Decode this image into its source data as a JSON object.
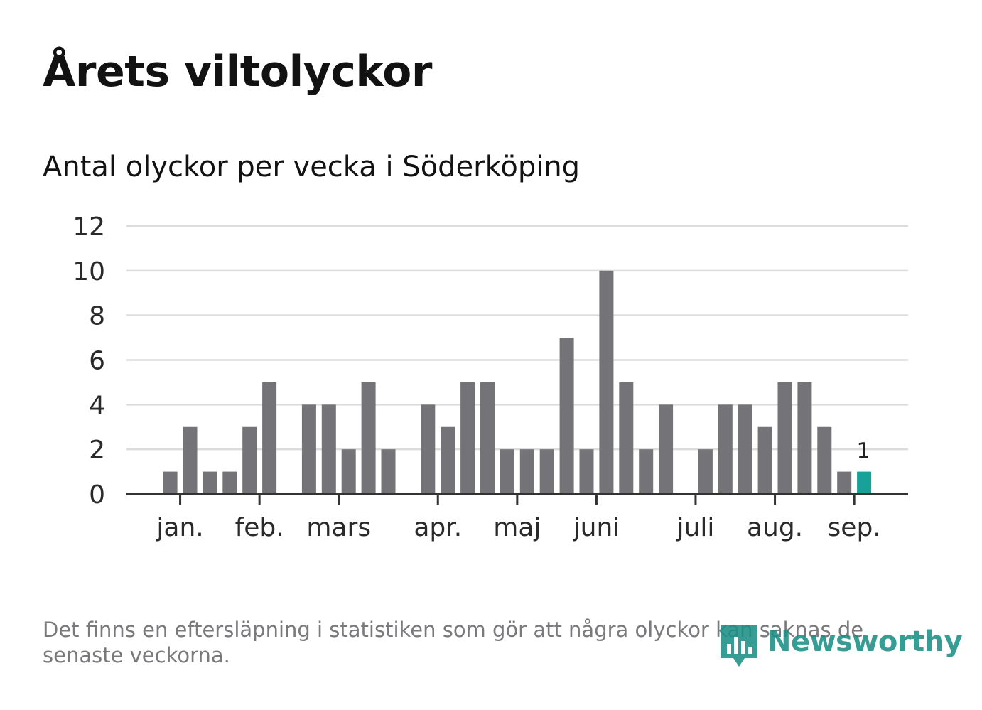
{
  "title": "Årets viltolyckor",
  "subtitle": "Antal olyckor per vecka i Söderköping",
  "footnote": "Det finns en eftersläpning i statistiken som gör att några olyckor kan saknas de senaste veckorna.",
  "logo": {
    "text": "Newsworthy",
    "icon": "newsworthy-bar-chart-icon"
  },
  "colors": {
    "bar": "#737378",
    "highlight": "#18a297",
    "grid": "#dcdcdc",
    "axis": "#333333"
  },
  "chart_data": {
    "type": "bar",
    "x": [
      1,
      2,
      3,
      4,
      5,
      6,
      7,
      8,
      9,
      10,
      11,
      12,
      13,
      14,
      15,
      16,
      17,
      18,
      19,
      20,
      21,
      22,
      23,
      24,
      25,
      26,
      27,
      28,
      29,
      30,
      31,
      32,
      33,
      34,
      35,
      36,
      37
    ],
    "values": [
      0,
      1,
      3,
      1,
      1,
      3,
      5,
      0,
      4,
      4,
      2,
      5,
      2,
      0,
      4,
      3,
      5,
      5,
      2,
      2,
      2,
      7,
      2,
      10,
      5,
      2,
      4,
      0,
      2,
      4,
      4,
      3,
      5,
      5,
      3,
      1,
      1
    ],
    "highlight_index": 36,
    "highlight_label": "1",
    "ylim": [
      0,
      12
    ],
    "yticks": [
      "0",
      "2",
      "4",
      "6",
      "8",
      "10",
      "12"
    ],
    "month_ticks": [
      {
        "label": "jan.",
        "x": 3
      },
      {
        "label": "feb.",
        "x": 7
      },
      {
        "label": "mars",
        "x": 11
      },
      {
        "label": "apr.",
        "x": 16
      },
      {
        "label": "maj",
        "x": 20
      },
      {
        "label": "juni",
        "x": 24
      },
      {
        "label": "juli",
        "x": 29
      },
      {
        "label": "aug.",
        "x": 33
      },
      {
        "label": "sep.",
        "x": 37
      }
    ],
    "grid": true,
    "xlabel": "",
    "ylabel": ""
  }
}
